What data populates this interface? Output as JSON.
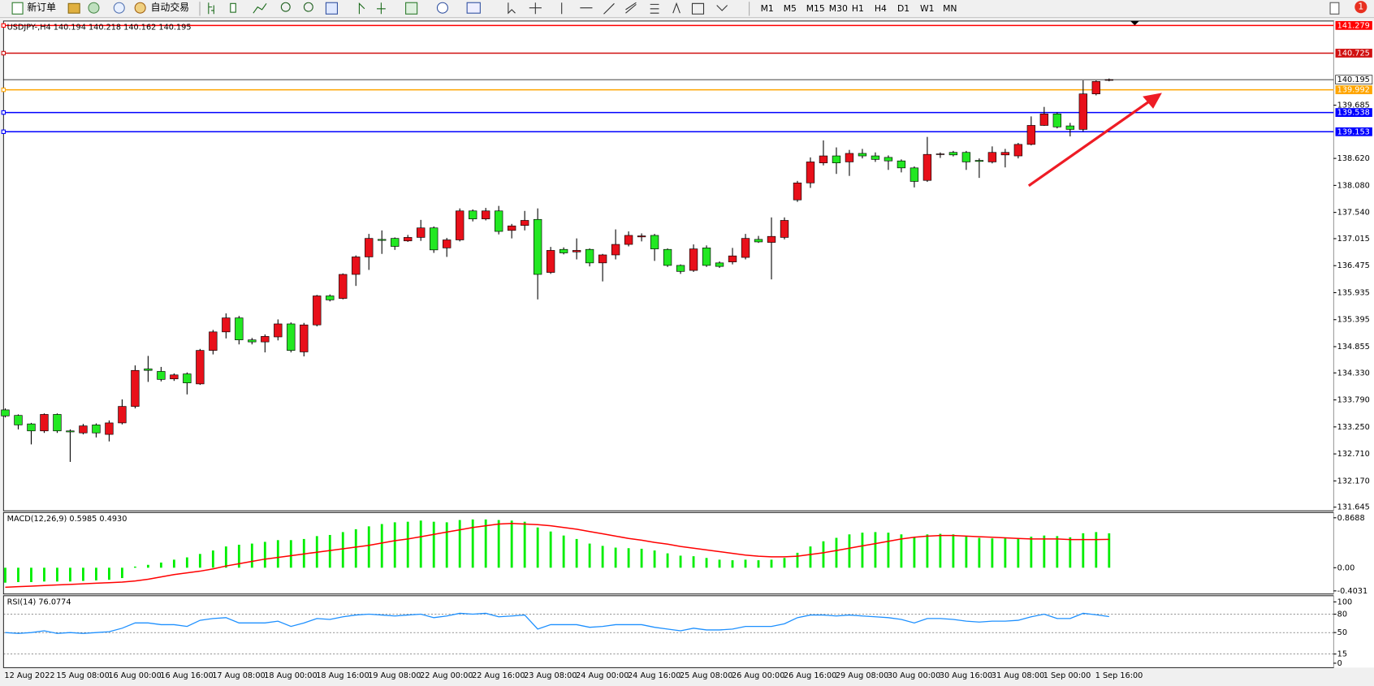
{
  "toolbar": {
    "new_order": "新订单",
    "auto_trading": "自动交易",
    "timeframes": [
      "M1",
      "M5",
      "M15",
      "M30",
      "H1",
      "H4",
      "D1",
      "W1",
      "MN"
    ],
    "alerts": 1
  },
  "chart_data": [
    {
      "type": "candlestick",
      "title": "USDJPY-,H4  140.194 140.218 140.162 140.195",
      "categories": [
        "12 Aug 2022",
        null,
        null,
        null,
        "15 Aug 08:00",
        null,
        null,
        null,
        "16 Aug 00:00",
        null,
        null,
        null,
        "16 Aug 16:00",
        null,
        null,
        null,
        "17 Aug 08:00",
        null,
        null,
        null,
        "18 Aug 00:00",
        null,
        null,
        null,
        "18 Aug 16:00",
        null,
        null,
        null,
        "19 Aug 08:00",
        null,
        null,
        null,
        "22 Aug 00:00",
        null,
        null,
        null,
        "22 Aug 16:00",
        null,
        null,
        null,
        "23 Aug 08:00",
        null,
        null,
        null,
        "24 Aug 00:00",
        null,
        null,
        null,
        "24 Aug 16:00",
        null,
        null,
        null,
        "25 Aug 08:00",
        null,
        null,
        null,
        "26 Aug 00:00",
        null,
        null,
        null,
        "26 Aug 16:00",
        null,
        null,
        null,
        "29 Aug 08:00",
        null,
        null,
        null,
        "30 Aug 00:00",
        null,
        null,
        null,
        "30 Aug 16:00",
        null,
        null,
        null,
        "31 Aug 08:00",
        null,
        null,
        null,
        "1 Sep 00:00",
        null,
        null,
        null,
        "1 Sep 16:00",
        null
      ],
      "open": [
        133.59,
        133.48,
        133.31,
        133.17,
        133.5,
        133.17,
        133.13,
        133.29,
        133.1,
        133.33,
        133.66,
        134.41,
        134.36,
        134.21,
        134.31,
        134.11,
        134.78,
        135.15,
        135.43,
        134.99,
        134.95,
        135.05,
        135.31,
        134.75,
        135.29,
        135.87,
        135.82,
        136.3,
        136.65,
        137.0,
        137.02,
        136.97,
        137.04,
        137.23,
        136.83,
        136.99,
        137.57,
        137.41,
        137.57,
        137.18,
        137.28,
        137.4,
        136.34,
        136.8,
        136.75,
        136.8,
        136.53,
        136.69,
        136.9,
        137.05,
        137.08,
        136.8,
        136.48,
        136.38,
        136.83,
        136.53,
        136.55,
        136.64,
        137.0,
        136.94,
        137.04,
        137.79,
        138.13,
        138.53,
        138.67,
        138.55,
        138.72,
        138.67,
        138.64,
        138.57,
        138.43,
        138.18,
        138.7,
        138.74,
        138.74,
        138.58,
        138.55,
        138.69,
        138.67,
        138.9,
        139.28,
        139.51,
        139.27,
        139.2,
        139.91,
        140.194
      ],
      "high": [
        133.62,
        133.5,
        133.33,
        133.52,
        133.52,
        133.2,
        133.31,
        133.32,
        133.38,
        133.8,
        134.48,
        134.67,
        134.45,
        134.32,
        134.34,
        134.81,
        135.19,
        135.52,
        135.47,
        135.03,
        135.1,
        135.4,
        135.34,
        135.33,
        135.89,
        135.9,
        136.32,
        136.68,
        137.11,
        137.18,
        137.04,
        137.09,
        137.39,
        137.26,
        137.03,
        137.62,
        137.6,
        137.63,
        137.67,
        137.31,
        137.57,
        137.62,
        136.85,
        136.84,
        137.02,
        136.82,
        136.71,
        137.2,
        137.16,
        137.12,
        137.11,
        136.82,
        136.5,
        136.9,
        136.88,
        136.56,
        136.83,
        137.11,
        137.07,
        137.44,
        137.44,
        138.17,
        138.64,
        138.98,
        138.84,
        138.79,
        138.81,
        138.74,
        138.68,
        138.6,
        138.46,
        139.05,
        138.74,
        138.77,
        138.77,
        138.62,
        138.86,
        138.81,
        138.93,
        139.46,
        139.65,
        139.54,
        139.33,
        140.18,
        140.18,
        140.218
      ],
      "low": [
        133.44,
        133.2,
        132.9,
        133.13,
        133.13,
        132.55,
        133.1,
        133.04,
        132.96,
        133.3,
        133.62,
        134.15,
        134.16,
        134.17,
        133.9,
        134.09,
        134.7,
        135.02,
        134.9,
        134.9,
        134.74,
        134.98,
        134.74,
        134.66,
        135.26,
        135.76,
        135.8,
        136.07,
        136.39,
        136.71,
        136.79,
        136.95,
        136.97,
        136.73,
        136.65,
        136.96,
        137.36,
        137.38,
        137.1,
        137.02,
        137.18,
        135.8,
        136.31,
        136.7,
        136.6,
        136.46,
        136.16,
        136.6,
        136.86,
        136.96,
        136.57,
        136.45,
        136.31,
        136.35,
        136.45,
        136.43,
        136.5,
        136.6,
        136.93,
        136.2,
        137.0,
        137.75,
        138.03,
        138.48,
        138.31,
        138.27,
        138.62,
        138.55,
        138.39,
        138.34,
        138.04,
        138.15,
        138.63,
        138.66,
        138.39,
        138.23,
        138.52,
        138.44,
        138.62,
        138.88,
        139.27,
        139.22,
        139.06,
        139.16,
        139.88,
        140.162
      ],
      "close": [
        133.47,
        133.29,
        133.17,
        133.5,
        133.17,
        133.15,
        133.27,
        133.13,
        133.33,
        133.66,
        134.38,
        134.38,
        134.2,
        134.29,
        134.13,
        134.78,
        135.15,
        135.43,
        134.99,
        134.95,
        135.06,
        135.31,
        134.78,
        135.29,
        135.87,
        135.79,
        136.3,
        136.65,
        137.02,
        136.98,
        136.86,
        137.04,
        137.23,
        136.79,
        136.99,
        137.57,
        137.41,
        137.57,
        137.16,
        137.27,
        137.38,
        136.3,
        136.78,
        136.73,
        136.78,
        136.53,
        136.69,
        136.9,
        137.08,
        137.07,
        136.81,
        136.48,
        136.36,
        136.81,
        136.48,
        136.46,
        136.67,
        137.02,
        136.95,
        137.06,
        137.38,
        138.13,
        138.55,
        138.67,
        138.53,
        138.72,
        138.67,
        138.6,
        138.57,
        138.43,
        138.16,
        138.7,
        138.71,
        138.69,
        138.55,
        138.56,
        138.74,
        138.74,
        138.9,
        139.28,
        139.51,
        139.25,
        139.2,
        139.91,
        140.16,
        140.195
      ],
      "up_color": "#e8101a",
      "down_color": "#22e822",
      "ylim": [
        131.59,
        141.35
      ],
      "yticks": [
        139.685,
        {
          "value": 138.62,
          "label": "138.620"
        },
        {
          "value": 138.08,
          "label": "138.080"
        },
        {
          "value": 137.54,
          "label": "137.540"
        },
        137.015,
        136.475,
        135.935,
        135.395,
        134.855,
        {
          "value": 134.33,
          "label": "134.330"
        },
        {
          "value": 133.79,
          "label": "133.790"
        },
        {
          "value": 133.25,
          "label": "133.250"
        },
        {
          "value": 132.71,
          "label": "132.710"
        },
        {
          "value": 132.17,
          "label": "132.170"
        },
        131.645
      ],
      "hlines": [
        {
          "value": 141.279,
          "color": "#ff0000"
        },
        {
          "value": 140.725,
          "color": "#d01010"
        },
        {
          "value": 139.992,
          "color": "#ffa500"
        },
        {
          "value": 139.538,
          "color": "#0000ff"
        },
        {
          "value": 139.153,
          "color": "#0000ff"
        }
      ]
    },
    {
      "type": "macd",
      "title": "MACD(12,26,9) 0.5985 0.4930",
      "values": [
        -0.26,
        -0.25,
        -0.25,
        -0.24,
        -0.24,
        -0.24,
        -0.23,
        -0.22,
        -0.21,
        -0.18,
        0.02,
        0.05,
        0.09,
        0.14,
        0.18,
        0.24,
        0.3,
        0.37,
        0.4,
        0.42,
        0.45,
        0.48,
        0.48,
        0.5,
        0.55,
        0.57,
        0.62,
        0.67,
        0.72,
        0.76,
        0.79,
        0.8,
        0.82,
        0.8,
        0.79,
        0.83,
        0.84,
        0.84,
        0.83,
        0.82,
        0.8,
        0.7,
        0.63,
        0.56,
        0.5,
        0.42,
        0.38,
        0.35,
        0.34,
        0.33,
        0.3,
        0.25,
        0.21,
        0.2,
        0.17,
        0.14,
        0.13,
        0.14,
        0.13,
        0.14,
        0.17,
        0.26,
        0.37,
        0.46,
        0.52,
        0.58,
        0.61,
        0.62,
        0.61,
        0.58,
        0.53,
        0.58,
        0.59,
        0.58,
        0.55,
        0.52,
        0.51,
        0.51,
        0.51,
        0.54,
        0.56,
        0.55,
        0.53,
        0.6,
        0.62,
        0.5985
      ],
      "signal": [
        -0.34,
        -0.33,
        -0.32,
        -0.31,
        -0.3,
        -0.29,
        -0.28,
        -0.27,
        -0.26,
        -0.25,
        -0.23,
        -0.2,
        -0.16,
        -0.12,
        -0.09,
        -0.06,
        -0.02,
        0.03,
        0.07,
        0.11,
        0.15,
        0.18,
        0.21,
        0.24,
        0.27,
        0.3,
        0.33,
        0.36,
        0.39,
        0.43,
        0.47,
        0.5,
        0.54,
        0.58,
        0.62,
        0.66,
        0.7,
        0.73,
        0.76,
        0.77,
        0.76,
        0.75,
        0.73,
        0.7,
        0.67,
        0.63,
        0.59,
        0.55,
        0.51,
        0.48,
        0.44,
        0.41,
        0.37,
        0.34,
        0.31,
        0.28,
        0.25,
        0.22,
        0.2,
        0.19,
        0.19,
        0.2,
        0.23,
        0.26,
        0.3,
        0.34,
        0.38,
        0.42,
        0.46,
        0.5,
        0.53,
        0.55,
        0.56,
        0.56,
        0.55,
        0.54,
        0.53,
        0.52,
        0.51,
        0.5,
        0.5,
        0.5,
        0.49,
        0.49,
        0.49,
        0.493
      ],
      "color": "#00ee00",
      "signal_color": "#ff0000",
      "ylim": [
        -0.442,
        0.945
      ],
      "yticks": [
        0.8688,
        {
          "value": 0,
          "label": "0.00"
        },
        -0.4031
      ]
    },
    {
      "type": "line",
      "title": "RSI(14) 76.0774",
      "values": [
        50,
        48.6,
        50,
        52.9,
        48.6,
        50,
        48.6,
        50,
        51.4,
        57.1,
        65.7,
        65.7,
        62.9,
        62.9,
        60,
        70,
        72.9,
        74.3,
        65.7,
        65.7,
        65.7,
        68.6,
        60,
        65.7,
        72.9,
        71.4,
        75.7,
        78.6,
        80,
        78.6,
        77.1,
        78.6,
        80,
        74.3,
        77.1,
        81.4,
        80,
        81.4,
        75.7,
        77.1,
        78.6,
        55.7,
        62.9,
        62.9,
        62.9,
        58.6,
        60,
        62.9,
        62.9,
        62.9,
        58.6,
        55.7,
        52.9,
        57.1,
        54.3,
        54.3,
        55.7,
        60,
        60,
        60,
        64.3,
        74.3,
        78.6,
        78.6,
        77.1,
        78.6,
        77.1,
        75.7,
        74.3,
        71.4,
        65.7,
        72.9,
        72.9,
        71.4,
        68.6,
        67.1,
        68.6,
        68.6,
        70,
        75.7,
        80,
        72.9,
        72.9,
        81.4,
        79,
        76.0774
      ],
      "color": "#1e90ff",
      "ylim": [
        -4.3,
        108.6
      ],
      "yticks": [
        100,
        80,
        50,
        15,
        0
      ],
      "levels": [
        80,
        50,
        15
      ]
    }
  ]
}
